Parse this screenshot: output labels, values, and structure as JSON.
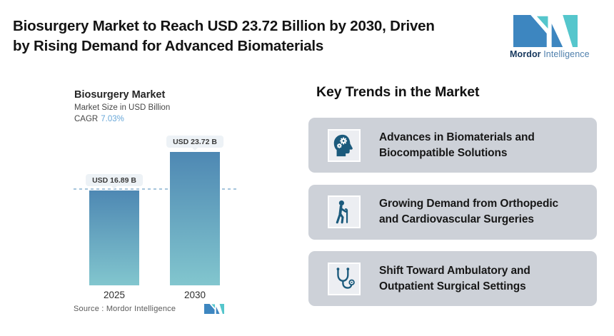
{
  "header": {
    "title_line1": "Biosurgery Market to Reach USD 23.72 Billion by 2030, Driven",
    "title_line2": "by Rising Demand for Advanced Biomaterials"
  },
  "brand": {
    "name_bold": "Mordor",
    "name_light": "Intelligence"
  },
  "chart": {
    "title": "Biosurgery Market",
    "subtitle": "Market Size in USD Billion",
    "cagr_label": "CAGR",
    "cagr_value": "7.03%",
    "source": "Source :  Mordor Intelligence"
  },
  "chart_data": {
    "type": "bar",
    "title": "Biosurgery Market",
    "ylabel": "Market Size in USD Billion",
    "categories": [
      "2025",
      "2030"
    ],
    "values": [
      16.89,
      23.72
    ],
    "value_labels": [
      "USD 16.89 B",
      "USD 23.72 B"
    ],
    "unit": "USD Billion",
    "cagr_percent": 7.03,
    "ylim": [
      0,
      23.72
    ],
    "reference_line": {
      "value": 16.89,
      "style": "dashed"
    },
    "grid": false,
    "legend": "none",
    "bar_gradient": [
      "#4e88b3",
      "#82c6ce"
    ]
  },
  "trends": {
    "heading": "Key Trends in the Market",
    "items": [
      {
        "icon": "head-with-gears-icon",
        "line1": "Advances in Biomaterials and",
        "line2": "Biocompatible Solutions"
      },
      {
        "icon": "person-with-cane-icon",
        "line1": "Growing Demand from Orthopedic",
        "line2": "and Cardiovascular Surgeries"
      },
      {
        "icon": "stethoscope-icon",
        "line1": "Shift Toward Ambulatory and",
        "line2": "Outpatient Surgical Settings"
      }
    ]
  },
  "colors": {
    "brand_blue": "#3d86c0",
    "brand_teal": "#55c6cc",
    "brand_navy": "#16375d",
    "brand_intelligence_blue": "#5080ad",
    "cagr_value_blue": "#68a7d8",
    "bar_top": "#4e88b3",
    "bar_bottom": "#82c6ce",
    "dashed_line": "#a6c5dc",
    "value_pill_bg": "#edf2f6",
    "card_bg": "#cdd1d8",
    "icon_dark_teal": "#1b5a7c"
  }
}
